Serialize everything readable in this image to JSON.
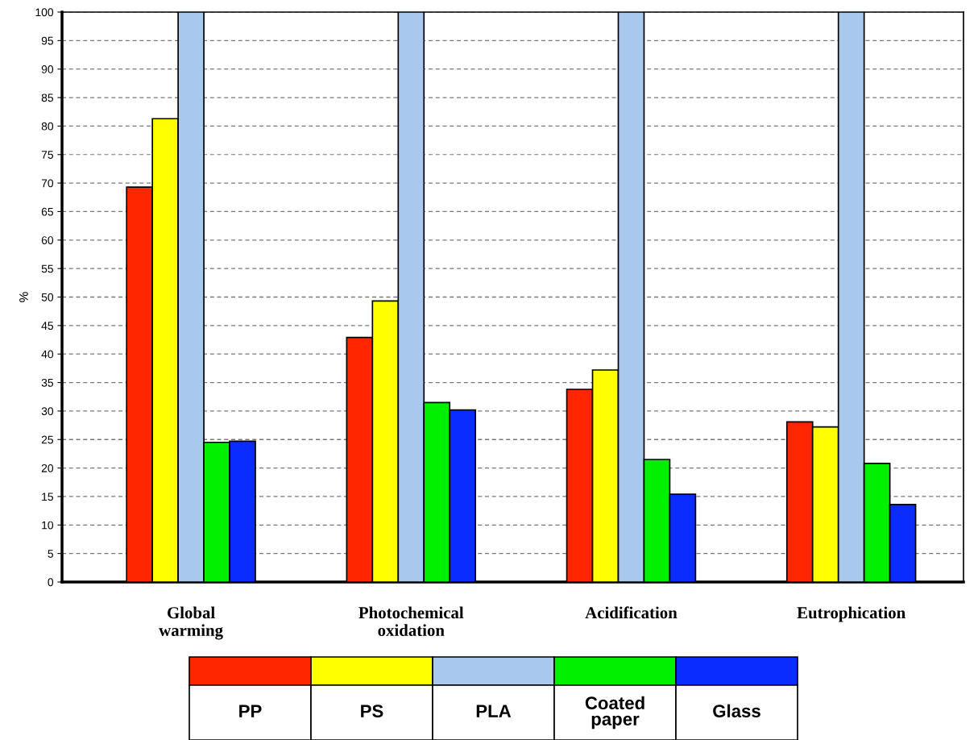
{
  "chart_data": {
    "type": "bar",
    "ylabel": "%",
    "categories": [
      "Global\nwarming",
      "Photochemical\noxidation",
      "Acidification",
      "Eutrophication"
    ],
    "series": [
      {
        "name": "PP",
        "color": "#ff2600",
        "values": [
          69.3,
          42.9,
          33.8,
          28.1
        ]
      },
      {
        "name": "PS",
        "color": "#ffff00",
        "values": [
          81.3,
          49.3,
          37.2,
          27.2
        ]
      },
      {
        "name": "PLA",
        "color": "#a9c8ee",
        "values": [
          100,
          100,
          100,
          100
        ]
      },
      {
        "name": "Coated paper",
        "color": "#00f000",
        "values": [
          24.5,
          31.5,
          21.5,
          20.8
        ]
      },
      {
        "name": "Glass",
        "color": "#0a2cff",
        "values": [
          24.7,
          30.2,
          15.4,
          13.6
        ]
      }
    ],
    "ylim": [
      0,
      100
    ],
    "yticks": [
      0,
      5,
      10,
      15,
      20,
      25,
      30,
      35,
      40,
      45,
      50,
      55,
      60,
      65,
      70,
      75,
      80,
      85,
      90,
      95,
      100
    ],
    "grid": "y",
    "legend": "bottom"
  }
}
